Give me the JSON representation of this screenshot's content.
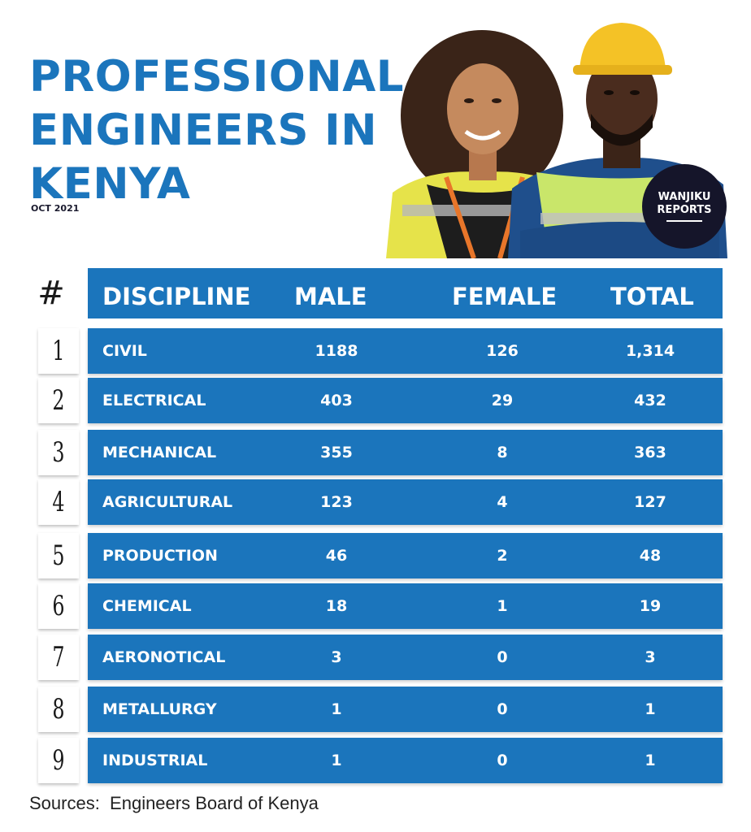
{
  "title_lines": [
    "PROFESSIONAL",
    "ENGINEERS IN",
    "KENYA"
  ],
  "date": "OCT 2021",
  "badge": {
    "line1": "WANJIKU",
    "line2": "REPORTS"
  },
  "colors": {
    "accent": "#1b75bc",
    "badge": "#15152a",
    "text_dark": "#1a1a1a"
  },
  "source": "Sources:  Engineers Board of Kenya",
  "chart_data": {
    "type": "table",
    "title": "PROFESSIONAL ENGINEERS IN KENYA",
    "columns": [
      "#",
      "DISCIPLINE",
      "MALE",
      "FEMALE",
      "TOTAL"
    ],
    "rows": [
      {
        "num": "1",
        "discipline": "CIVIL",
        "male": "1188",
        "female": "126",
        "total": "1,314"
      },
      {
        "num": "2",
        "discipline": "ELECTRICAL",
        "male": "403",
        "female": "29",
        "total": "432"
      },
      {
        "num": "3",
        "discipline": "MECHANICAL",
        "male": "355",
        "female": "8",
        "total": "363"
      },
      {
        "num": "4",
        "discipline": "AGRICULTURAL",
        "male": "123",
        "female": "4",
        "total": "127"
      },
      {
        "num": "5",
        "discipline": "PRODUCTION",
        "male": "46",
        "female": "2",
        "total": "48"
      },
      {
        "num": "6",
        "discipline": "CHEMICAL",
        "male": "18",
        "female": "1",
        "total": "19"
      },
      {
        "num": "7",
        "discipline": "AERONOTICAL",
        "male": "3",
        "female": "0",
        "total": "3"
      },
      {
        "num": "8",
        "discipline": "METALLURGY",
        "male": "1",
        "female": "0",
        "total": "1"
      },
      {
        "num": "9",
        "discipline": "INDUSTRIAL",
        "male": "1",
        "female": "0",
        "total": "1"
      }
    ]
  }
}
